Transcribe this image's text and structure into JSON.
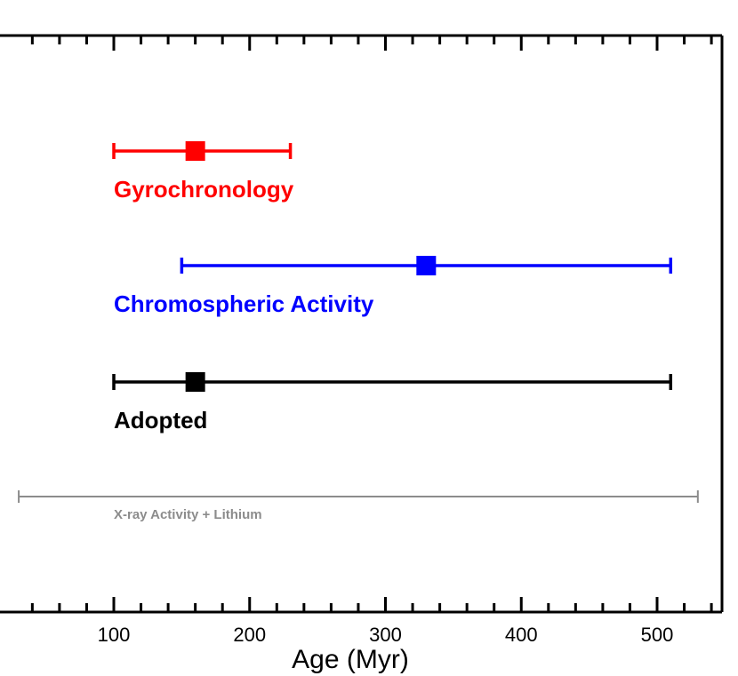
{
  "chart_data": {
    "type": "errorbar",
    "xlabel": "Age (Myr)",
    "xlim": [
      30,
      550
    ],
    "major_ticks": [
      100,
      200,
      300,
      400,
      500
    ],
    "minor_tick_step": 20,
    "series": [
      {
        "name": "Gyrochronology",
        "value": 160,
        "low": 100,
        "high": 230,
        "color": "#ff0000",
        "marker": "square"
      },
      {
        "name": "Chromospheric Activity",
        "value": 330,
        "low": 150,
        "high": 510,
        "color": "#0000ff",
        "marker": "square"
      },
      {
        "name": "Adopted",
        "value": 160,
        "low": 100,
        "high": 510,
        "color": "#000000",
        "marker": "square"
      },
      {
        "name": "X-ray Activity + Lithium",
        "value": null,
        "low": 30,
        "high": 530,
        "color": "#8c8c8c",
        "marker": "none"
      }
    ]
  }
}
